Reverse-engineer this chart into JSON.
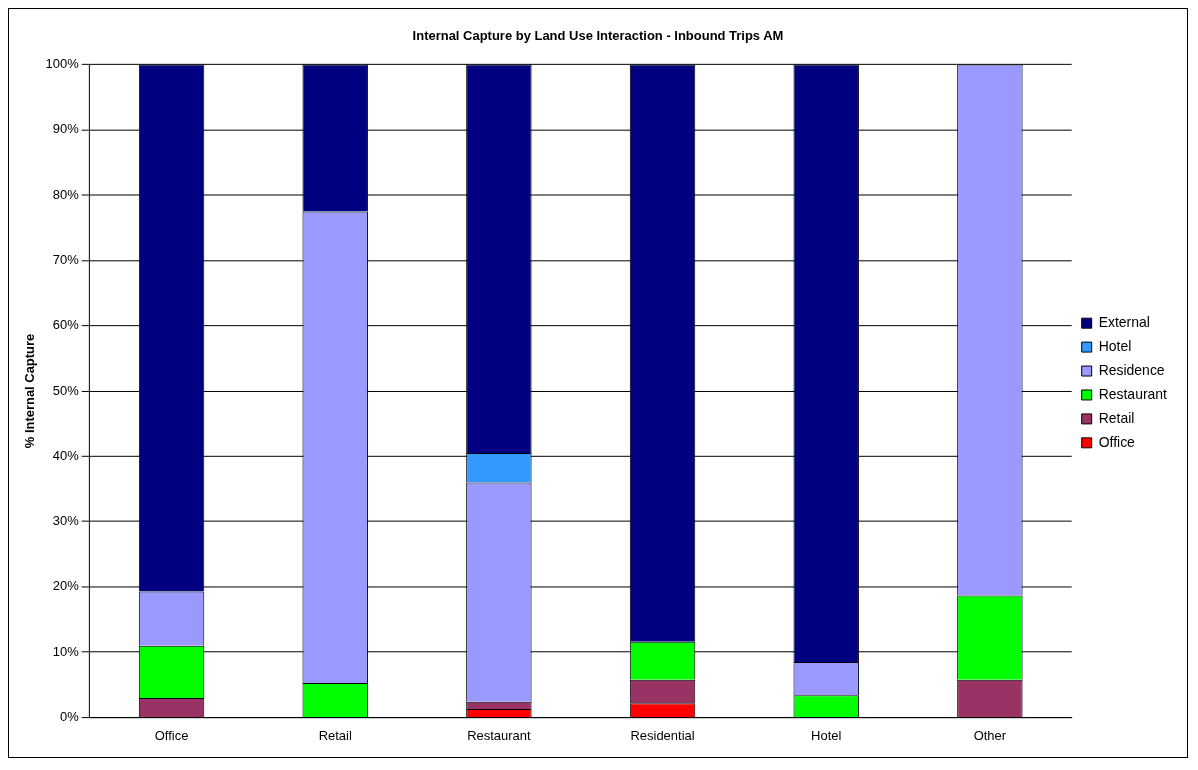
{
  "chart_data": {
    "type": "bar",
    "title": "Internal Capture by Land Use Interaction - Inbound Trips AM",
    "ylabel": "% Internal Capture",
    "categories": [
      "Office",
      "Retail",
      "Restaurant",
      "Residential",
      "Hotel",
      "Other"
    ],
    "stacked": true,
    "grid": "y",
    "legend": "right",
    "ylim": [
      0,
      100
    ],
    "yticks": [
      {
        "value": 0,
        "label": "0%"
      },
      {
        "value": 10,
        "label": "10%"
      },
      {
        "value": 20,
        "label": "20%"
      },
      {
        "value": 30,
        "label": "30%"
      },
      {
        "value": 40,
        "label": "40%"
      },
      {
        "value": 50,
        "label": "50%"
      },
      {
        "value": 60,
        "label": "60%"
      },
      {
        "value": 70,
        "label": "70%"
      },
      {
        "value": 80,
        "label": "80%"
      },
      {
        "value": 90,
        "label": "90%"
      },
      {
        "value": 100,
        "label": "100%"
      }
    ],
    "series": [
      {
        "name": "Office",
        "color": "#ff0000",
        "values": [
          0,
          0,
          1.3,
          2.2,
          0,
          0
        ]
      },
      {
        "name": "Retail",
        "color": "#993366",
        "values": [
          3,
          0,
          1.1,
          3.6,
          0,
          5.8
        ]
      },
      {
        "name": "Restaurant",
        "color": "#00ff00",
        "values": [
          8,
          5.3,
          0,
          5.8,
          3.4,
          12.9
        ]
      },
      {
        "name": "Residence",
        "color": "#9999ff",
        "values": [
          8.3,
          72.2,
          33.6,
          0,
          5.1,
          81.3
        ]
      },
      {
        "name": "Hotel",
        "color": "#3399ff",
        "values": [
          0,
          0,
          4.5,
          0,
          0,
          0
        ]
      },
      {
        "name": "External",
        "color": "#000080",
        "values": [
          80.7,
          22.5,
          59.5,
          88.4,
          91.5,
          0
        ]
      }
    ]
  }
}
